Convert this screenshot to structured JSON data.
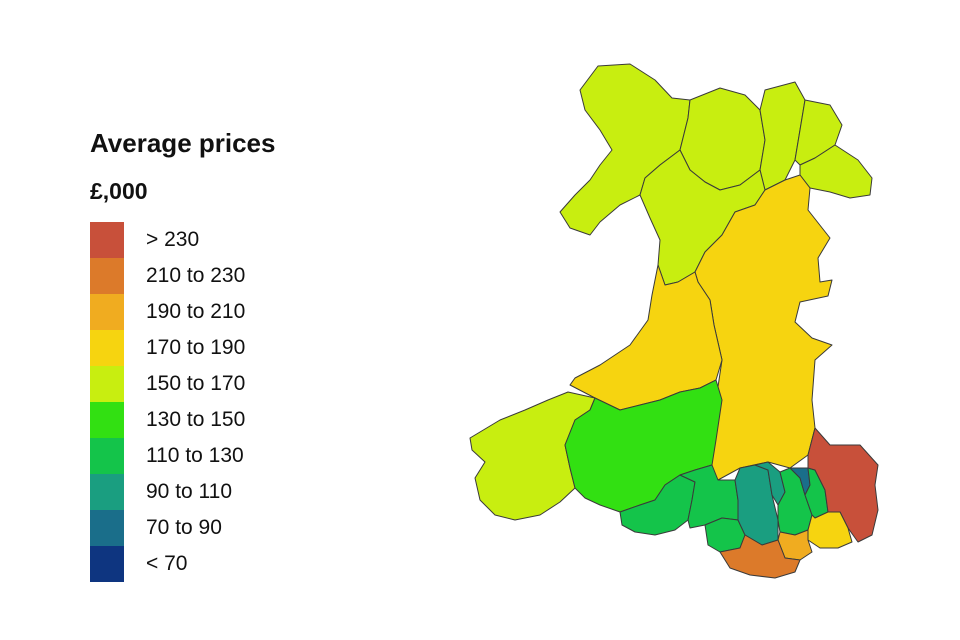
{
  "legend": {
    "title": "Average prices",
    "unit": "£,000",
    "bands": [
      {
        "label": "> 230",
        "color": "#c8503a"
      },
      {
        "label": "210 to 230",
        "color": "#dc7a2a"
      },
      {
        "label": "190 to 210",
        "color": "#f0ac20"
      },
      {
        "label": "170 to 190",
        "color": "#f6d410"
      },
      {
        "label": "150 to 170",
        "color": "#c8ee10"
      },
      {
        "label": "130 to 150",
        "color": "#32e012"
      },
      {
        "label": "110 to 130",
        "color": "#14c44a"
      },
      {
        "label": "90 to 110",
        "color": "#1a9e80"
      },
      {
        "label": "70 to 90",
        "color": "#1a6e8a"
      },
      {
        "label": "< 70",
        "color": "#0e3580"
      }
    ]
  },
  "map": {
    "regions": [
      {
        "name": "anglesey-gwynedd-north",
        "band": 4
      },
      {
        "name": "conwy",
        "band": 4
      },
      {
        "name": "denbighshire",
        "band": 4
      },
      {
        "name": "flintshire",
        "band": 4
      },
      {
        "name": "wrexham",
        "band": 4
      },
      {
        "name": "gwynedd",
        "band": 4
      },
      {
        "name": "powys",
        "band": 3
      },
      {
        "name": "ceredigion",
        "band": 3
      },
      {
        "name": "pembrokeshire",
        "band": 4
      },
      {
        "name": "carmarthenshire",
        "band": 5
      },
      {
        "name": "swansea",
        "band": 6
      },
      {
        "name": "neath-port-talbot",
        "band": 6
      },
      {
        "name": "bridgend",
        "band": 6
      },
      {
        "name": "rhondda-cynon-taf",
        "band": 7
      },
      {
        "name": "merthyr-tydfil",
        "band": 7
      },
      {
        "name": "caerphilly",
        "band": 6
      },
      {
        "name": "blaenau-gwent",
        "band": 8
      },
      {
        "name": "torfaen",
        "band": 6
      },
      {
        "name": "monmouthshire",
        "band": 0
      },
      {
        "name": "newport",
        "band": 3
      },
      {
        "name": "cardiff",
        "band": 2
      },
      {
        "name": "vale-of-glamorgan",
        "band": 1
      }
    ]
  }
}
